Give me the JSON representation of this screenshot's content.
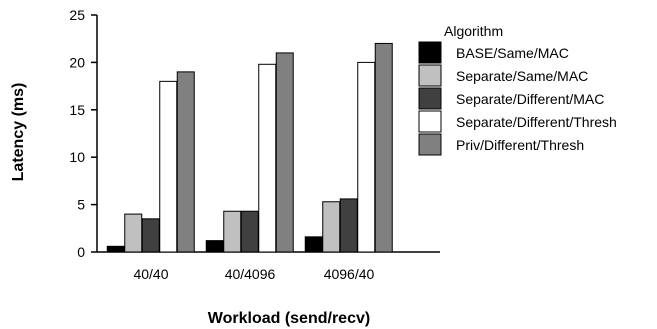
{
  "chart_data": {
    "type": "bar",
    "xlabel": "Workload (send/recv)",
    "ylabel": "Latency (ms)",
    "ylim": [
      0,
      25
    ],
    "yticks": [
      0,
      5,
      10,
      15,
      20,
      25
    ],
    "categories": [
      "40/40",
      "40/4096",
      "4096/40"
    ],
    "legend_title": "Algorithm",
    "legend_position": "right",
    "grid": false,
    "series": [
      {
        "name": "BASE/Same/MAC",
        "color": "#000000",
        "values": [
          0.6,
          1.2,
          1.6
        ]
      },
      {
        "name": "Separate/Same/MAC",
        "color": "#c0c0c0",
        "values": [
          4.0,
          4.3,
          5.3
        ]
      },
      {
        "name": "Separate/Different/MAC",
        "color": "#404040",
        "values": [
          3.5,
          4.3,
          5.6
        ]
      },
      {
        "name": "Separate/Different/Thresh",
        "color": "#ffffff",
        "values": [
          18.0,
          19.8,
          20.0
        ]
      },
      {
        "name": "Priv/Different/Thresh",
        "color": "#808080",
        "values": [
          19.0,
          21.0,
          22.0
        ]
      }
    ]
  }
}
